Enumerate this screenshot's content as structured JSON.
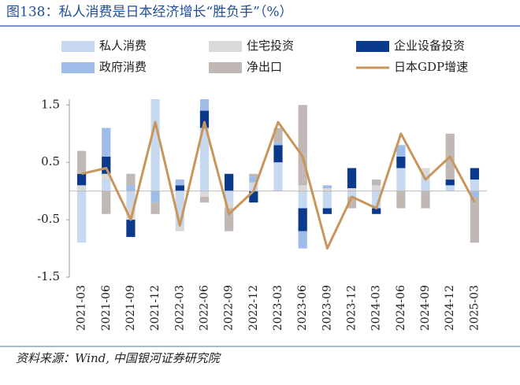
{
  "chart_data": {
    "type": "bar",
    "title": "图138：私人消费是日本经济增长“胜负手”（%）",
    "source": "资料来源：Wind, 中国银河证券研究院",
    "categories": [
      "2021-03",
      "2021-06",
      "2021-09",
      "2021-12",
      "2022-03",
      "2022-06",
      "2022-09",
      "2022-12",
      "2023-03",
      "2023-06",
      "2023-09",
      "2023-12",
      "2024-03",
      "2024-06",
      "2024-09",
      "2024-12",
      "2025-03"
    ],
    "series": [
      {
        "name": "私人消费",
        "color": "#c6d9f0",
        "values": [
          -0.9,
          0.2,
          -0.3,
          1.6,
          -0.6,
          1.1,
          -0.2,
          0.1,
          0.5,
          -0.3,
          -0.3,
          -0.1,
          -0.3,
          0.4,
          0.3,
          0.1,
          0.2
        ]
      },
      {
        "name": "住宅投资",
        "color": "#d9d9d9",
        "values": [
          0.1,
          0.1,
          -0.2,
          0,
          -0.1,
          -0.1,
          -0.1,
          0.05,
          0,
          0.1,
          0.05,
          0.05,
          0.1,
          0,
          0.1,
          0,
          0
        ]
      },
      {
        "name": "企业设备投资",
        "color": "#0b3a8c",
        "values": [
          0.2,
          0.3,
          -0.3,
          0,
          0.1,
          0.3,
          0.3,
          -0.2,
          0.3,
          -0.4,
          -0.1,
          0.35,
          -0.1,
          0.2,
          0,
          0.1,
          0.2
        ]
      },
      {
        "name": "政府消费",
        "color": "#9fbde8",
        "values": [
          0,
          0.5,
          0.1,
          -0.2,
          0.1,
          0.2,
          0,
          0.1,
          0.05,
          -0.3,
          0.05,
          0,
          0,
          0.2,
          0,
          0,
          -0.1
        ]
      },
      {
        "name": "净出口",
        "color": "#bfb8b4",
        "values": [
          0.4,
          -0.4,
          0.2,
          -0.2,
          0,
          -0.1,
          -0.4,
          0.05,
          0.25,
          1.4,
          0,
          -0.2,
          0.1,
          -0.3,
          -0.3,
          0.8,
          -0.8
        ]
      },
      {
        "name": "日本GDP增速",
        "color": "#c8955a",
        "type": "line",
        "values": [
          0.3,
          0.4,
          -0.5,
          1.2,
          -0.6,
          1.2,
          -0.4,
          0.0,
          1.2,
          0.6,
          -1.0,
          -0.1,
          -0.3,
          1.0,
          0.2,
          0.6,
          -0.2
        ]
      }
    ],
    "ylim": [
      -1.5,
      1.6
    ],
    "yticks": [
      -1.5,
      -0.5,
      0.5,
      1.5
    ]
  }
}
